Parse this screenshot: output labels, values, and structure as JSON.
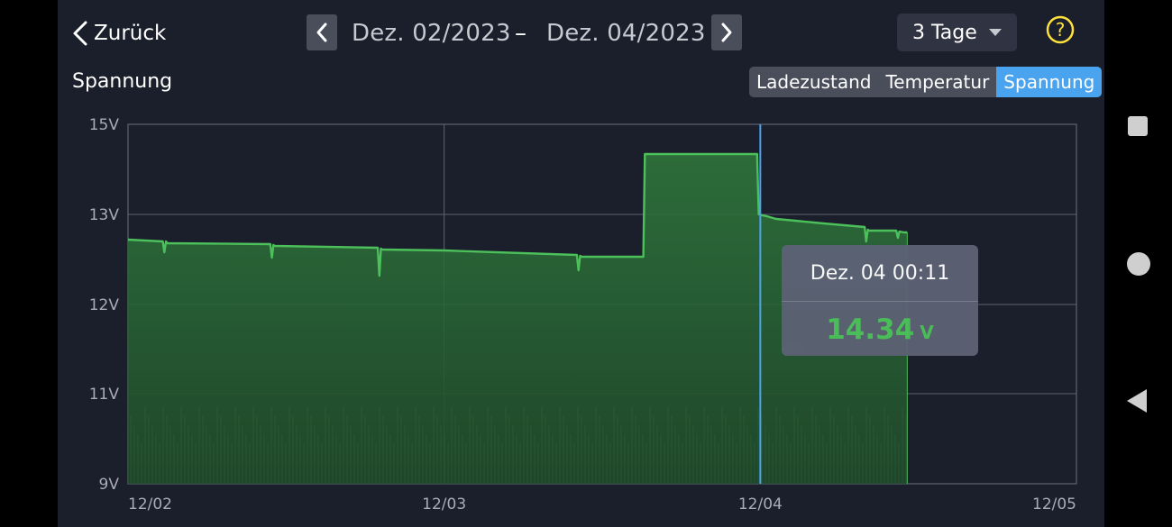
{
  "header": {
    "back_label": "Zurück",
    "date_from": "Dez. 02/2023",
    "date_separator": "–",
    "date_to": "Dez. 04/2023",
    "range_value": "3 Tage",
    "help_symbol": "?"
  },
  "metric_title": "Spannung",
  "tabs": [
    {
      "label": "Ladezustand",
      "active": false
    },
    {
      "label": "Temperatur",
      "active": false
    },
    {
      "label": "Spannung",
      "active": true
    }
  ],
  "tooltip": {
    "date": "Dez. 04 00:11",
    "value": "14.34",
    "unit": "V"
  },
  "colors": {
    "background": "#1b1e2b",
    "accent_blue": "#4aa3ee",
    "line_green": "#4cc05a",
    "help_yellow": "#ffe13d"
  },
  "icons": {
    "back": "chevron-left-icon",
    "prev": "chevron-left-icon",
    "next": "chevron-right-icon",
    "dropdown": "caret-down-icon",
    "help": "question-circle-icon"
  },
  "chart_data": {
    "type": "area",
    "title": "Spannung",
    "ylabel": "",
    "xlabel": "",
    "ylim": [
      9,
      15
    ],
    "xlim": [
      0,
      3
    ],
    "y_ticks": [
      15,
      13,
      12,
      11,
      9
    ],
    "y_tick_labels": [
      "15V",
      "13V",
      "12V",
      "11V",
      "9V"
    ],
    "x_ticks": [
      0,
      1,
      2,
      3
    ],
    "x_tick_labels": [
      "12/02",
      "12/03",
      "12/04",
      "12/05"
    ],
    "grid": true,
    "cursor_x": 2.0,
    "series": [
      {
        "x": [
          0,
          0.11,
          0.115,
          0.12,
          0.125,
          0.45,
          0.455,
          0.46,
          0.465,
          0.79,
          0.795,
          0.8,
          0.805,
          1.0,
          1.42,
          1.425,
          1.43,
          1.435,
          1.63,
          1.635,
          1.64,
          1.99,
          1.995,
          2.02,
          2.05,
          2.2,
          2.33,
          2.335,
          2.34,
          2.345,
          2.43,
          2.435,
          2.44,
          2.455,
          2.465
        ],
        "y": [
          12.72,
          12.7,
          12.58,
          12.7,
          12.68,
          12.67,
          12.52,
          12.66,
          12.65,
          12.63,
          12.32,
          12.62,
          12.61,
          12.6,
          12.55,
          12.38,
          12.54,
          12.53,
          12.53,
          14.34,
          14.34,
          14.34,
          13.0,
          12.98,
          12.95,
          12.9,
          12.86,
          12.7,
          12.83,
          12.82,
          12.82,
          12.74,
          12.81,
          12.8,
          12.8
        ],
        "end_x": 2.465
      }
    ]
  }
}
